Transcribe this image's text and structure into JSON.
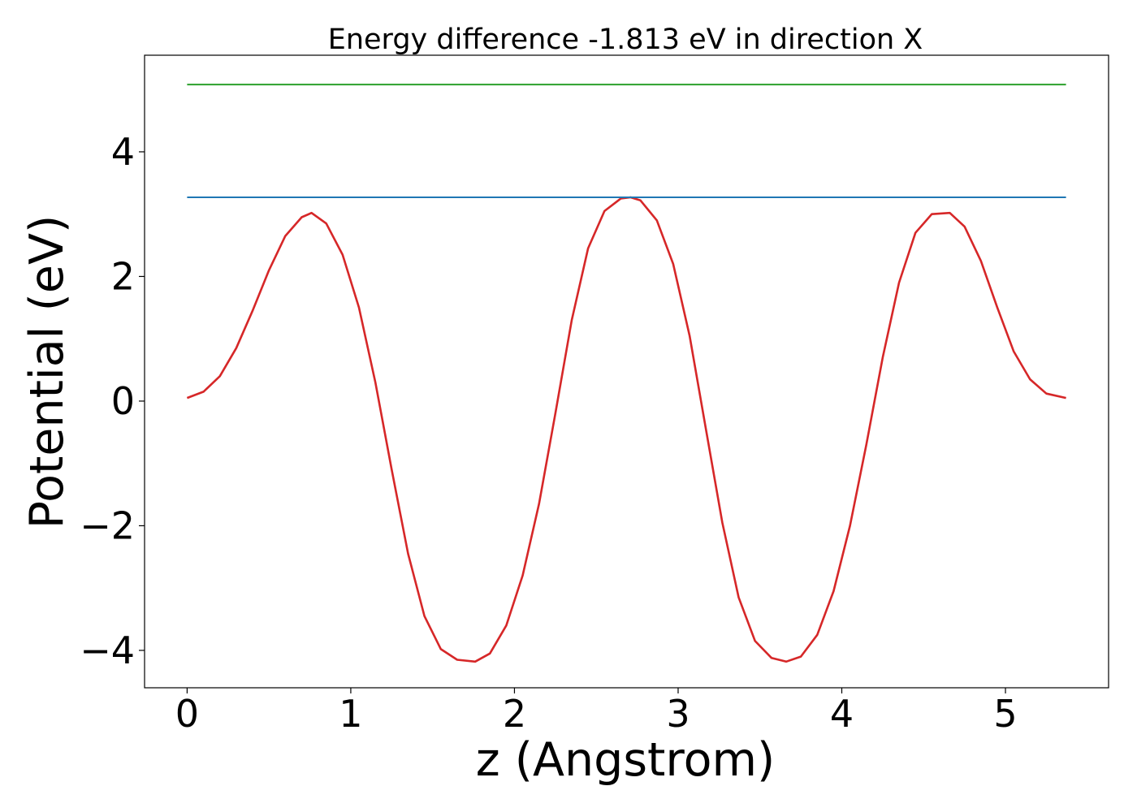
{
  "chart_data": {
    "type": "line",
    "title": "Energy difference -1.813 eV in direction X",
    "xlabel": "z (Angstrom)",
    "ylabel": "Potential (eV)",
    "xlim": [
      -0.26,
      5.63
    ],
    "ylim": [
      -4.6,
      5.55
    ],
    "xticks": [
      0,
      1,
      2,
      3,
      4,
      5
    ],
    "xtick_labels": [
      "0",
      "1",
      "2",
      "3",
      "4",
      "5"
    ],
    "yticks": [
      -4,
      -2,
      0,
      2,
      4
    ],
    "ytick_labels": [
      "−4",
      "−2",
      "0",
      "2",
      "4"
    ],
    "grid": false,
    "series": [
      {
        "color": "#d62728",
        "x": [
          0.0,
          0.1,
          0.2,
          0.3,
          0.4,
          0.5,
          0.6,
          0.7,
          0.76,
          0.85,
          0.95,
          1.05,
          1.15,
          1.25,
          1.35,
          1.45,
          1.55,
          1.65,
          1.76,
          1.85,
          1.95,
          2.05,
          2.15,
          2.25,
          2.35,
          2.45,
          2.55,
          2.65,
          2.71,
          2.77,
          2.87,
          2.97,
          3.07,
          3.17,
          3.27,
          3.37,
          3.47,
          3.57,
          3.66,
          3.75,
          3.85,
          3.95,
          4.05,
          4.15,
          4.25,
          4.35,
          4.45,
          4.55,
          4.66,
          4.75,
          4.85,
          4.95,
          5.05,
          5.15,
          5.25,
          5.37
        ],
        "y": [
          0.05,
          0.15,
          0.4,
          0.85,
          1.45,
          2.1,
          2.65,
          2.95,
          3.02,
          2.85,
          2.35,
          1.5,
          0.3,
          -1.1,
          -2.45,
          -3.45,
          -3.98,
          -4.15,
          -4.18,
          -4.05,
          -3.6,
          -2.8,
          -1.65,
          -0.2,
          1.3,
          2.45,
          3.05,
          3.25,
          3.27,
          3.22,
          2.9,
          2.2,
          1.05,
          -0.45,
          -1.95,
          -3.15,
          -3.85,
          -4.12,
          -4.18,
          -4.1,
          -3.75,
          -3.05,
          -2.0,
          -0.7,
          0.7,
          1.9,
          2.7,
          3.0,
          3.02,
          2.8,
          2.25,
          1.5,
          0.8,
          0.35,
          0.12,
          0.05
        ]
      },
      {
        "color": "#1f77b4",
        "x": [
          0.0,
          5.37
        ],
        "y": [
          3.27,
          3.27
        ]
      },
      {
        "color": "#2ca02c",
        "x": [
          0.0,
          5.37
        ],
        "y": [
          5.08,
          5.08
        ]
      }
    ]
  }
}
